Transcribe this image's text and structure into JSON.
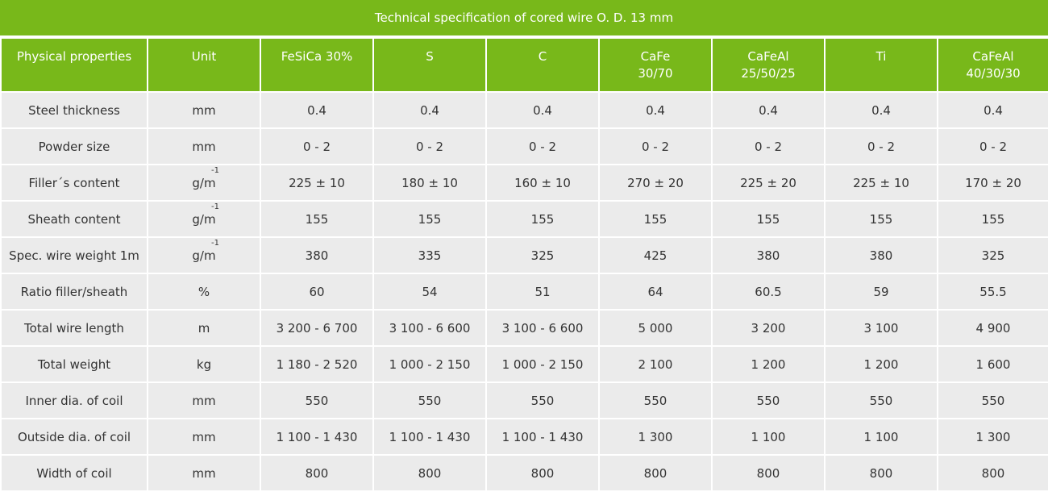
{
  "title": "Technical specification of cored wire O. D. 13 mm",
  "header": {
    "property": "Physical properties",
    "unit": "Unit",
    "col1": "FeSiCa 30%",
    "col2": "S",
    "col3": "C",
    "col4": "CaFe\n30/70",
    "col5": "CaFeAl\n25/50/25",
    "col6": "Ti",
    "col7": "CaFeAl\n40/30/30"
  },
  "rows": [
    {
      "property": "Steel thickness",
      "unit": "mm",
      "unit_sup": "",
      "v1": "0.4",
      "v2": "0.4",
      "v3": "0.4",
      "v4": "0.4",
      "v5": "0.4",
      "v6": "0.4",
      "v7": "0.4"
    },
    {
      "property": "Powder size",
      "unit": "mm",
      "unit_sup": "",
      "v1": "0 - 2",
      "v2": "0 - 2",
      "v3": "0 - 2",
      "v4": "0 - 2",
      "v5": "0 - 2",
      "v6": "0 - 2",
      "v7": "0 - 2"
    },
    {
      "property": "Filler´s content",
      "unit": "g/m",
      "unit_sup": "-1",
      "v1": "225 ± 10",
      "v2": "180 ± 10",
      "v3": "160 ± 10",
      "v4": "270 ± 20",
      "v5": "225 ± 20",
      "v6": "225 ± 10",
      "v7": "170 ± 20"
    },
    {
      "property": "Sheath content",
      "unit": "g/m",
      "unit_sup": "-1",
      "v1": "155",
      "v2": "155",
      "v3": "155",
      "v4": "155",
      "v5": "155",
      "v6": "155",
      "v7": "155"
    },
    {
      "property": "Spec. wire weight 1m",
      "unit": "g/m",
      "unit_sup": "-1",
      "v1": "380",
      "v2": "335",
      "v3": "325",
      "v4": "425",
      "v5": "380",
      "v6": "380",
      "v7": "325"
    },
    {
      "property": "Ratio filler/sheath",
      "unit": "%",
      "unit_sup": "",
      "v1": "60",
      "v2": "54",
      "v3": "51",
      "v4": "64",
      "v5": "60.5",
      "v6": "59",
      "v7": "55.5"
    },
    {
      "property": "Total wire length",
      "unit": "m",
      "unit_sup": "",
      "v1": "3 200 - 6 700",
      "v2": "3 100 - 6 600",
      "v3": "3 100 - 6 600",
      "v4": "5 000",
      "v5": "3 200",
      "v6": "3 100",
      "v7": "4 900"
    },
    {
      "property": "Total weight",
      "unit": "kg",
      "unit_sup": "",
      "v1": "1 180 - 2 520",
      "v2": "1 000 - 2 150",
      "v3": "1 000 - 2 150",
      "v4": "2 100",
      "v5": "1 200",
      "v6": "1 200",
      "v7": "1 600"
    },
    {
      "property": "Inner dia. of coil",
      "unit": "mm",
      "unit_sup": "",
      "v1": "550",
      "v2": "550",
      "v3": "550",
      "v4": "550",
      "v5": "550",
      "v6": "550",
      "v7": "550"
    },
    {
      "property": "Outside dia. of coil",
      "unit": "mm",
      "unit_sup": "",
      "v1": "1 100 - 1 430",
      "v2": "1 100 - 1 430",
      "v3": "1 100 - 1 430",
      "v4": "1 300",
      "v5": "1 100",
      "v6": "1 100",
      "v7": "1 300"
    },
    {
      "property": "Width of coil",
      "unit": "mm",
      "unit_sup": "",
      "v1": "800",
      "v2": "800",
      "v3": "800",
      "v4": "800",
      "v5": "800",
      "v6": "800",
      "v7": "800"
    }
  ],
  "colors": {
    "header_green": "#78b81a",
    "cell_gray": "#ebebeb",
    "text": "#333333"
  }
}
